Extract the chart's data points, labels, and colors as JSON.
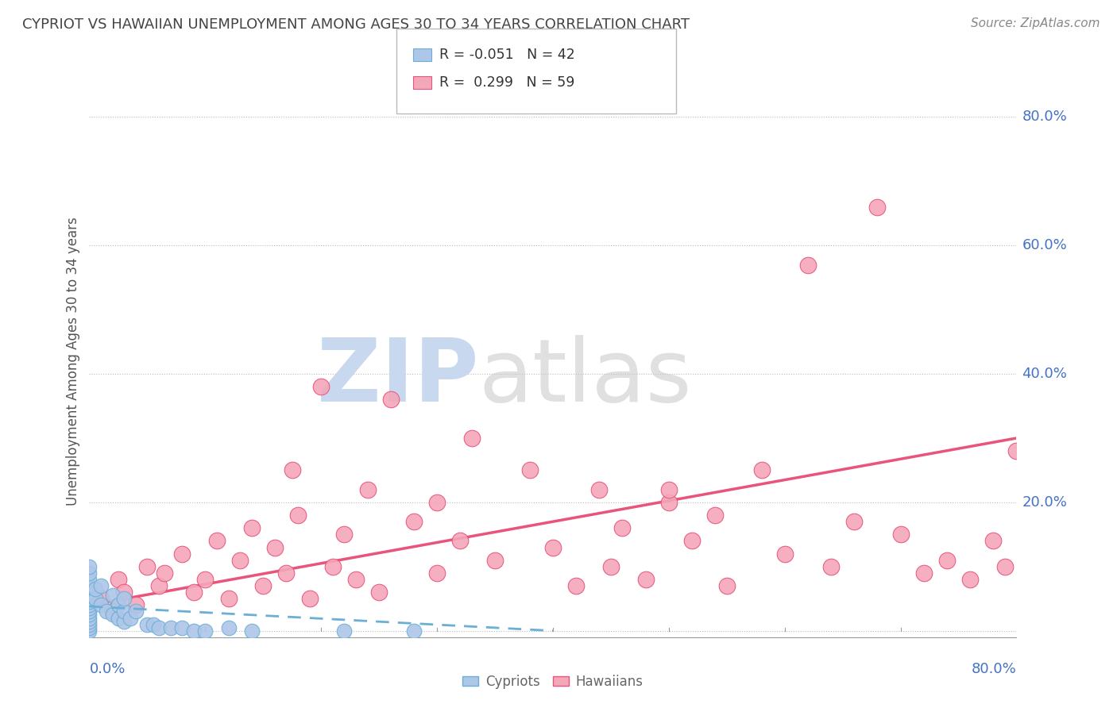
{
  "title": "CYPRIOT VS HAWAIIAN UNEMPLOYMENT AMONG AGES 30 TO 34 YEARS CORRELATION CHART",
  "source": "Source: ZipAtlas.com",
  "ylabel": "Unemployment Among Ages 30 to 34 years",
  "y_tick_labels": [
    "0.0%",
    "20.0%",
    "40.0%",
    "60.0%",
    "80.0%"
  ],
  "y_tick_values": [
    0.0,
    0.2,
    0.4,
    0.6,
    0.8
  ],
  "xlim": [
    0,
    0.8
  ],
  "ylim": [
    -0.01,
    0.85
  ],
  "legend_r_cypriot": "-0.051",
  "legend_n_cypriot": "42",
  "legend_r_hawaiian": "0.299",
  "legend_n_hawaiian": "59",
  "cypriot_color": "#aec6e8",
  "hawaiian_color": "#f4a7b9",
  "cypriot_edge_color": "#6baed6",
  "hawaiian_edge_color": "#e8547a",
  "cypriot_line_color": "#6baed6",
  "hawaiian_line_color": "#e8547a",
  "background_color": "#ffffff",
  "grid_color": "#bbbbbb",
  "watermark_zip_color": "#c8d8ee",
  "watermark_atlas_color": "#c8c8c8",
  "label_color": "#4472c4",
  "title_color": "#444444",
  "source_color": "#888888",
  "ylabel_color": "#555555",
  "cypriot_x": [
    0.0,
    0.0,
    0.0,
    0.0,
    0.0,
    0.0,
    0.0,
    0.0,
    0.0,
    0.0,
    0.0,
    0.0,
    0.0,
    0.0,
    0.0,
    0.0,
    0.0,
    0.005,
    0.005,
    0.01,
    0.01,
    0.015,
    0.02,
    0.02,
    0.025,
    0.025,
    0.03,
    0.03,
    0.03,
    0.035,
    0.04,
    0.05,
    0.055,
    0.06,
    0.07,
    0.08,
    0.09,
    0.1,
    0.12,
    0.14,
    0.22,
    0.28
  ],
  "cypriot_y": [
    0.0,
    0.005,
    0.01,
    0.015,
    0.02,
    0.025,
    0.03,
    0.035,
    0.04,
    0.045,
    0.05,
    0.055,
    0.06,
    0.07,
    0.08,
    0.09,
    0.1,
    0.05,
    0.065,
    0.04,
    0.07,
    0.03,
    0.025,
    0.055,
    0.02,
    0.04,
    0.015,
    0.03,
    0.05,
    0.02,
    0.03,
    0.01,
    0.01,
    0.005,
    0.005,
    0.005,
    0.0,
    0.0,
    0.005,
    0.0,
    0.0,
    0.0
  ],
  "hawaiian_x": [
    0.01,
    0.02,
    0.025,
    0.03,
    0.04,
    0.05,
    0.06,
    0.065,
    0.08,
    0.09,
    0.1,
    0.11,
    0.12,
    0.13,
    0.14,
    0.15,
    0.16,
    0.17,
    0.175,
    0.18,
    0.19,
    0.2,
    0.21,
    0.22,
    0.23,
    0.24,
    0.25,
    0.26,
    0.28,
    0.3,
    0.32,
    0.33,
    0.35,
    0.38,
    0.4,
    0.42,
    0.44,
    0.45,
    0.46,
    0.48,
    0.5,
    0.52,
    0.54,
    0.55,
    0.58,
    0.6,
    0.62,
    0.64,
    0.66,
    0.68,
    0.7,
    0.72,
    0.74,
    0.76,
    0.78,
    0.79,
    0.8,
    0.5,
    0.3
  ],
  "hawaiian_y": [
    0.05,
    0.03,
    0.08,
    0.06,
    0.04,
    0.1,
    0.07,
    0.09,
    0.12,
    0.06,
    0.08,
    0.14,
    0.05,
    0.11,
    0.16,
    0.07,
    0.13,
    0.09,
    0.25,
    0.18,
    0.05,
    0.38,
    0.1,
    0.15,
    0.08,
    0.22,
    0.06,
    0.36,
    0.17,
    0.09,
    0.14,
    0.3,
    0.11,
    0.25,
    0.13,
    0.07,
    0.22,
    0.1,
    0.16,
    0.08,
    0.2,
    0.14,
    0.18,
    0.07,
    0.25,
    0.12,
    0.57,
    0.1,
    0.17,
    0.66,
    0.15,
    0.09,
    0.11,
    0.08,
    0.14,
    0.1,
    0.28,
    0.22,
    0.2
  ],
  "cyp_trend_x": [
    0.0,
    0.4
  ],
  "cyp_trend_y": [
    0.038,
    0.0
  ],
  "haw_trend_x": [
    0.0,
    0.8
  ],
  "haw_trend_y": [
    0.04,
    0.3
  ]
}
